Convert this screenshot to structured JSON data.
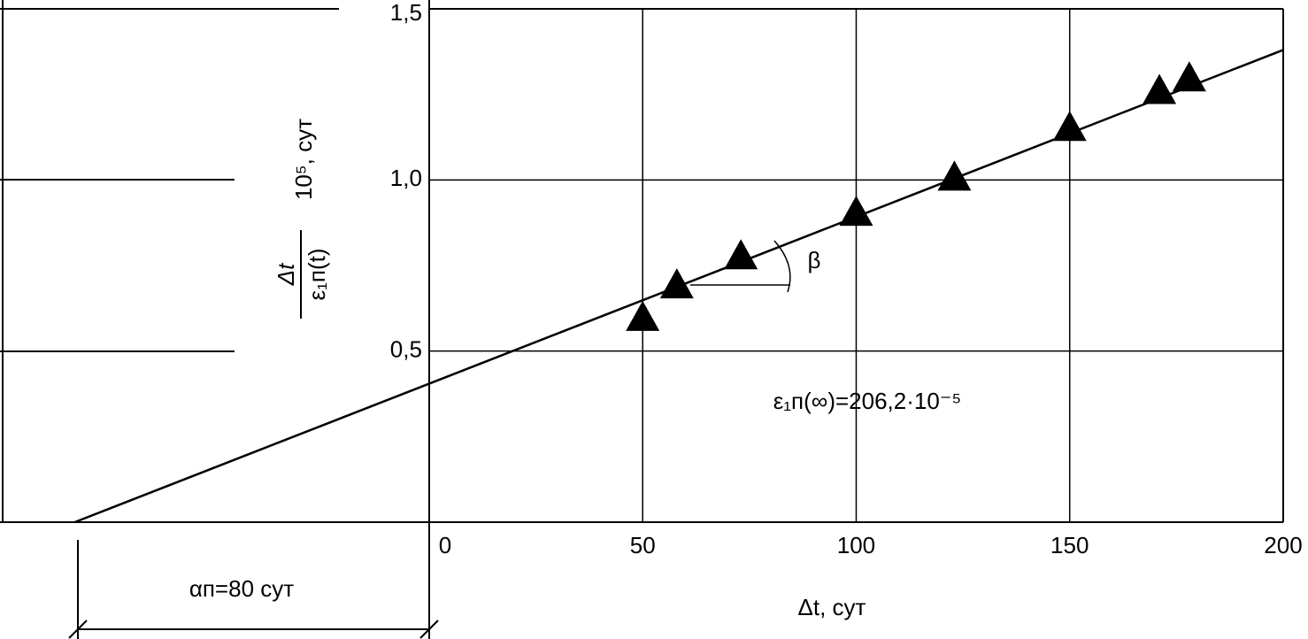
{
  "chart_data": {
    "type": "scatter",
    "x": [
      50,
      58,
      73,
      100,
      123,
      150,
      171,
      178
    ],
    "values": [
      0.59,
      0.685,
      0.77,
      0.897,
      1.0,
      1.145,
      1.253,
      1.29
    ],
    "color": "#000000",
    "trend_line": {
      "x": [
        -83,
        200
      ],
      "values": [
        0,
        1.38
      ]
    },
    "xlim": [
      -100.5,
      200
    ],
    "ylim": [
      0,
      1.5
    ],
    "xticks": [
      0,
      50,
      100,
      150,
      200
    ],
    "yticks": [
      {
        "value": 0.5,
        "label": "0,5"
      },
      {
        "value": 1.0,
        "label": "1,0"
      },
      {
        "value": 1.5,
        "label": "1,5"
      }
    ],
    "grid": true,
    "x_label": "Δt, сут",
    "y_label": {
      "numerator": "Δt",
      "denominator": "ε₁п(t)",
      "factor": "10⁵, сут"
    },
    "annotations": {
      "epsilon": "ε₁п(∞)=206,2·10⁻⁵",
      "beta": "β",
      "alpha": "αп=80 сут"
    }
  }
}
